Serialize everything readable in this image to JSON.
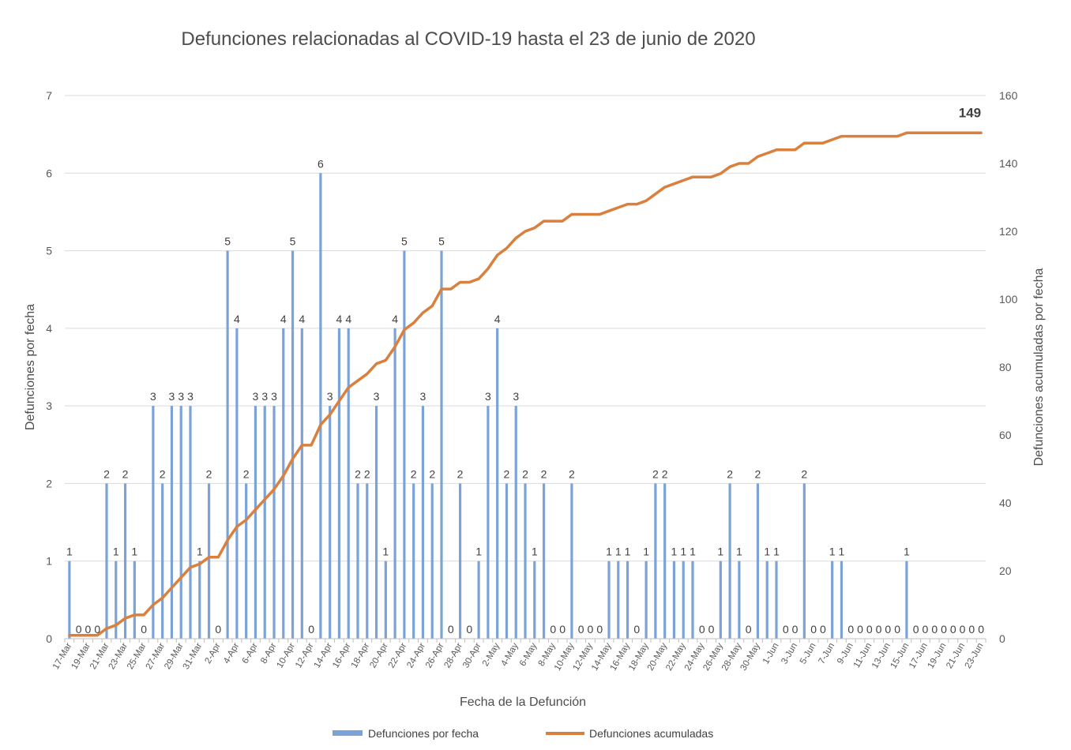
{
  "chart_data": {
    "type": "bar",
    "title": "Defunciones relacionadas al COVID-19 hasta el 23 de junio de 2020",
    "xlabel": "Fecha de la Defunción",
    "ylabel": "Defunciones por fecha",
    "y2label": "Defunciones acumuladas por fecha",
    "ylim": [
      0,
      7
    ],
    "y2lim": [
      0,
      160
    ],
    "yticks": [
      0,
      1,
      2,
      3,
      4,
      5,
      6,
      7
    ],
    "y2ticks": [
      0,
      20,
      40,
      60,
      80,
      100,
      120,
      140,
      160
    ],
    "grid": true,
    "legend_position": "bottom",
    "categories": [
      "17-Mar",
      "18-Mar",
      "19-Mar",
      "20-Mar",
      "21-Mar",
      "22-Mar",
      "23-Mar",
      "24-Mar",
      "25-Mar",
      "26-Mar",
      "27-Mar",
      "28-Mar",
      "29-Mar",
      "30-Mar",
      "31-Mar",
      "1-Apr",
      "2-Apr",
      "3-Apr",
      "4-Apr",
      "5-Apr",
      "6-Apr",
      "7-Apr",
      "8-Apr",
      "9-Apr",
      "10-Apr",
      "11-Apr",
      "12-Apr",
      "13-Apr",
      "14-Apr",
      "15-Apr",
      "16-Apr",
      "17-Apr",
      "18-Apr",
      "19-Apr",
      "20-Apr",
      "21-Apr",
      "22-Apr",
      "23-Apr",
      "24-Apr",
      "25-Apr",
      "26-Apr",
      "27-Apr",
      "28-Apr",
      "29-Apr",
      "30-Apr",
      "1-May",
      "2-May",
      "3-May",
      "4-May",
      "5-May",
      "6-May",
      "7-May",
      "8-May",
      "9-May",
      "10-May",
      "11-May",
      "12-May",
      "13-May",
      "14-May",
      "15-May",
      "16-May",
      "17-May",
      "18-May",
      "19-May",
      "20-May",
      "21-May",
      "22-May",
      "23-May",
      "24-May",
      "25-May",
      "26-May",
      "27-May",
      "28-May",
      "29-May",
      "30-May",
      "31-May",
      "1-Jun",
      "2-Jun",
      "3-Jun",
      "4-Jun",
      "5-Jun",
      "6-Jun",
      "7-Jun",
      "8-Jun",
      "9-Jun",
      "10-Jun",
      "11-Jun",
      "12-Jun",
      "13-Jun",
      "14-Jun",
      "15-Jun",
      "16-Jun",
      "17-Jun",
      "18-Jun",
      "19-Jun",
      "20-Jun",
      "21-Jun",
      "22-Jun",
      "23-Jun"
    ],
    "series": [
      {
        "name": "Defunciones por fecha",
        "type": "bar",
        "axis": "left",
        "color": "#7ca3d8",
        "values": [
          1,
          0,
          0,
          0,
          2,
          1,
          2,
          1,
          0,
          3,
          2,
          3,
          3,
          3,
          1,
          2,
          0,
          5,
          4,
          2,
          3,
          3,
          3,
          4,
          5,
          4,
          0,
          6,
          3,
          4,
          4,
          2,
          2,
          3,
          1,
          4,
          5,
          2,
          3,
          2,
          5,
          0,
          2,
          0,
          1,
          3,
          4,
          2,
          3,
          2,
          1,
          2,
          0,
          0,
          2,
          0,
          0,
          0,
          1,
          1,
          1,
          0,
          1,
          2,
          2,
          1,
          1,
          1,
          0,
          0,
          1,
          2,
          1,
          0,
          2,
          1,
          1,
          0,
          0,
          2,
          0,
          0,
          1,
          1,
          0,
          0,
          0,
          0,
          0,
          0,
          1,
          0,
          0,
          0,
          0,
          0,
          0,
          0,
          0
        ]
      },
      {
        "name": "Defunciones acumuladas",
        "type": "line",
        "axis": "right",
        "color": "#d9803f",
        "values": [
          1,
          1,
          1,
          1,
          3,
          4,
          6,
          7,
          7,
          10,
          12,
          15,
          18,
          21,
          22,
          24,
          24,
          29,
          33,
          35,
          38,
          41,
          44,
          48,
          53,
          57,
          57,
          63,
          66,
          70,
          74,
          76,
          78,
          81,
          82,
          86,
          91,
          93,
          96,
          98,
          103,
          103,
          105,
          105,
          106,
          109,
          113,
          115,
          118,
          120,
          121,
          123,
          123,
          123,
          125,
          125,
          125,
          125,
          126,
          127,
          128,
          128,
          129,
          131,
          133,
          134,
          135,
          136,
          136,
          136,
          137,
          139,
          140,
          140,
          142,
          143,
          144,
          144,
          144,
          146,
          146,
          146,
          147,
          148,
          148,
          148,
          148,
          148,
          148,
          148,
          149,
          149,
          149,
          149,
          149,
          149,
          149,
          149,
          149
        ]
      }
    ],
    "final_annotation": "149"
  }
}
